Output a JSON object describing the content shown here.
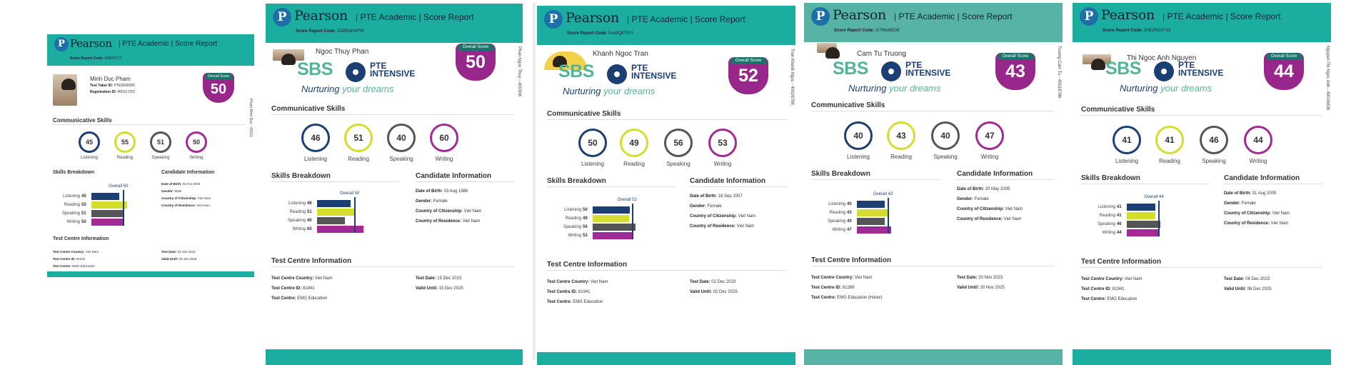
{
  "brand": {
    "logo": "P",
    "name": "Pearson",
    "subtitle": "| PTE Academic | Score Report"
  },
  "labels": {
    "score_code": "Score Report Code:",
    "overall_score": "Overall Score",
    "communicative_skills": "Communicative Skills",
    "skills_breakdown": "Skills Breakdown",
    "candidate_information": "Candidate Information",
    "test_centre_information": "Test Centre Information",
    "listening": "Listening",
    "reading": "Reading",
    "speaking": "Speaking",
    "writing": "Writing",
    "overall": "Overall",
    "dob": "Date of Birth:",
    "gender": "Gender:",
    "citizenship": "Country of Citizenship:",
    "residence": "Country of Residence:",
    "tc_country": "Test Centre Country:",
    "tc_id": "Test Centre ID:",
    "tc": "Test Centre:",
    "test_date": "Test Date:",
    "valid_until": "Valid Until:",
    "test_taker_id": "Test Taker ID:",
    "registration_id": "Registration ID:"
  },
  "promo": {
    "sbs": "SBS",
    "pte": "PTE",
    "intensive": "INTENSIVE",
    "tagline_a": "Nurturing",
    "tagline_b": "your dreams"
  },
  "colors": {
    "teal": "#1aada0",
    "navy": "#1b3f73",
    "lime": "#d5dd2c",
    "grey": "#555555",
    "purple": "#a12a95"
  },
  "reports": [
    {
      "name": "Minh Duc Pham",
      "code": "2A3HY177",
      "overall": "50",
      "listening": "45",
      "reading": "55",
      "speaking": "51",
      "writing": "50",
      "test_taker_id": "PTE0000000",
      "registration_id": "400117207",
      "dob": "06 Oct 2000",
      "gender": "Male",
      "citizenship": "Viet Nam",
      "residence": "Viet Nam",
      "tc_country": "Viet Nam",
      "tc_id": "81941",
      "tc": "EMG Education",
      "test_date": "03 Jan 2024",
      "valid_until": "03 Jan 2026",
      "vert": "Pham Minh Duc - 40011"
    },
    {
      "name": "Ngoc Thuy Phan",
      "code": "2025hnHAFW",
      "overall": "50",
      "listening": "46",
      "reading": "51",
      "speaking": "40",
      "writing": "60",
      "dob": "03 Aug 1986",
      "gender": "Female",
      "citizenship": "Viet Nam",
      "residence": "Viet Nam",
      "tc_country": "Viet Nam",
      "tc_id": "81941",
      "tc": "EMG Education",
      "test_date": "15 Dec 2023",
      "valid_until": "15 Dec 2025",
      "vert": "Phan Ngoc Thuy - 400306"
    },
    {
      "name": "Khanh Ngoc Tran",
      "code": "5oo9Q6TEYI",
      "overall": "52",
      "listening": "50",
      "reading": "49",
      "speaking": "56",
      "writing": "53",
      "dob": "18 Sep 2007",
      "gender": "Female",
      "citizenship": "Viet Nam",
      "residence": "Viet Nam",
      "tc_country": "Viet Nam",
      "tc_id": "81941",
      "tc": "EMG Education",
      "test_date": "02 Dec 2023",
      "valid_until": "02 Dec 2025",
      "vert": "Tran Khanh Ngoc - 40026786"
    },
    {
      "name": "Cam Tu Truong",
      "code": "2r7Wo9i5GE",
      "overall": "43",
      "listening": "40",
      "reading": "43",
      "speaking": "40",
      "writing": "47",
      "dob": "20 May 2005",
      "gender": "Female",
      "citizenship": "Viet Nam",
      "residence": "Viet Nam",
      "tc_country": "Viet Nam",
      "tc_id": "81269",
      "tc": "EMG Education (Hanoi)",
      "test_date": "20 Nov 2023",
      "valid_until": "20 Nov 2025",
      "vert": "Truong Cam Tu - 40018786"
    },
    {
      "name": "Thi Ngoc Anh Nguyen",
      "code": "2nB1RDXY13",
      "overall": "44",
      "listening": "41",
      "reading": "41",
      "speaking": "46",
      "writing": "44",
      "dob": "31 Aug 2005",
      "gender": "Female",
      "citizenship": "Viet Nam",
      "residence": "Viet Nam",
      "tc_country": "Viet Nam",
      "tc_id": "81941",
      "tc": "EMG Education",
      "test_date": "06 Dec 2023",
      "valid_until": "06 Dec 2025",
      "vert": "Nguyen Thi Ngoc Anh - 40016836"
    }
  ]
}
